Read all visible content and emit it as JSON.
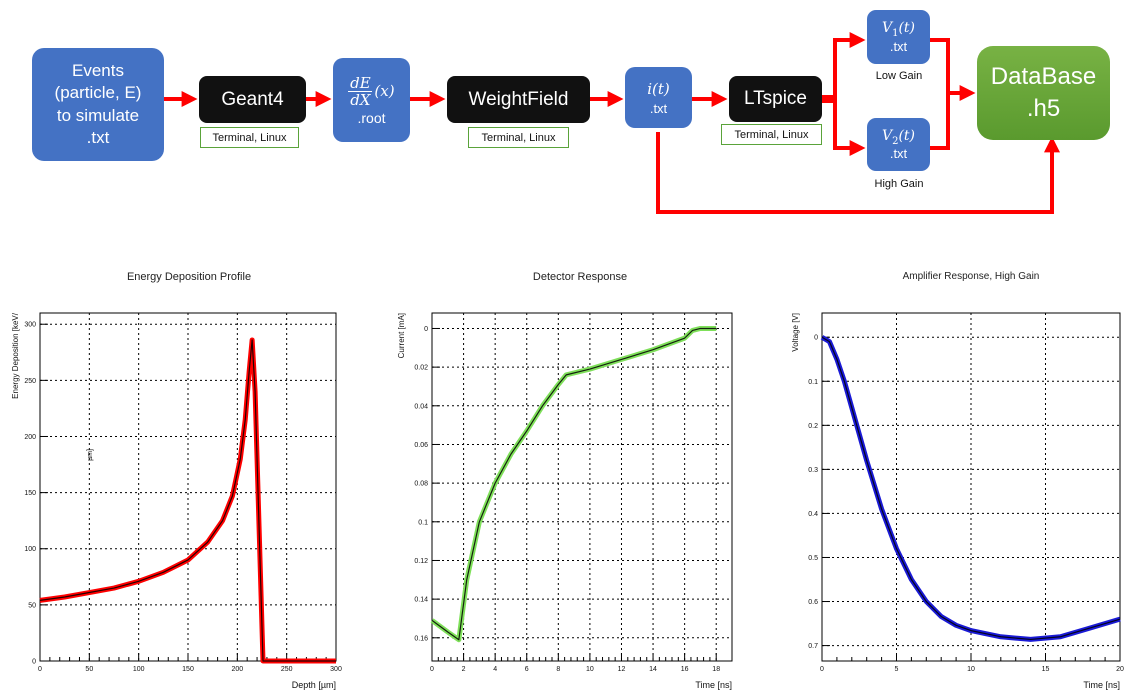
{
  "diagram": {
    "events": [
      "Events",
      "(particle, E)",
      "to simulate",
      ".txt"
    ],
    "geant4": "Geant4",
    "geant4_note": "Terminal, Linux",
    "dedx_num": "dE",
    "dedx_den": "dX",
    "dedx_arg": "(x)",
    "dedx_ext": ".root",
    "weightfield": "WeightField",
    "weightfield_note": "Terminal, Linux",
    "it_math": "i(t)",
    "it_ext": ".txt",
    "ltspice": "LTspice",
    "ltspice_note": "Terminal, Linux",
    "v1_math": "V",
    "v1_sub": "1",
    "v1_arg": "(t)",
    "v1_ext": ".txt",
    "low_gain": "Low Gain",
    "v2_math": "V",
    "v2_sub": "2",
    "v2_arg": "(t)",
    "v2_ext": ".txt",
    "high_gain": "High Gain",
    "database": [
      "DataBase",
      ".h5"
    ],
    "colors": {
      "box_blue": "#4472c4",
      "arrow_red": "#ff0000",
      "db_green": "#6aa839"
    }
  },
  "chart_data": [
    {
      "type": "line",
      "title": "Energy Deposition Profile",
      "xlabel": "Depth [µm]",
      "ylabel": "Energy Deposition [keV/",
      "stray_label": "µm]",
      "xlim": [
        0,
        300
      ],
      "ylim": [
        0,
        310
      ],
      "xticks": [
        0,
        50,
        100,
        150,
        200,
        250,
        300
      ],
      "yticks": [
        0,
        50,
        100,
        150,
        200,
        250,
        300
      ],
      "grid": true,
      "series": [
        {
          "color": "#ff0000",
          "x": [
            0,
            25,
            50,
            75,
            100,
            125,
            150,
            170,
            185,
            195,
            203,
            208,
            212,
            215,
            218,
            222,
            226,
            300
          ],
          "y": [
            54,
            57,
            61,
            65,
            71,
            79,
            90,
            106,
            125,
            147,
            180,
            215,
            258,
            286,
            240,
            120,
            0,
            0
          ]
        }
      ]
    },
    {
      "type": "line",
      "title": "Detector Response",
      "xlabel": "Time [ns]",
      "ylabel": "Current [mA]",
      "xlim": [
        0,
        19
      ],
      "ylim": [
        0.172,
        -0.008
      ],
      "xticks": [
        0,
        2,
        4,
        6,
        8,
        10,
        12,
        14,
        16,
        18
      ],
      "yticks": [
        0,
        0.02,
        0.04,
        0.06,
        0.08,
        0.1,
        0.12,
        0.14,
        0.16
      ],
      "ytick_labels": [
        "0",
        "0.02",
        "0.04",
        "0.06",
        "0.08",
        "0.1",
        "0.12",
        "0.14",
        "0.16"
      ],
      "grid": true,
      "series": [
        {
          "color": "#7fe05a",
          "x": [
            0,
            1,
            1.7,
            2.2,
            3,
            4,
            5,
            6,
            7,
            8,
            8.5,
            10,
            12,
            14,
            16,
            16.5,
            17,
            18
          ],
          "y": [
            0.151,
            0.157,
            0.161,
            0.13,
            0.1,
            0.08,
            0.065,
            0.053,
            0.04,
            0.029,
            0.024,
            0.021,
            0.016,
            0.011,
            0.005,
            0.001,
            0,
            0
          ]
        }
      ]
    },
    {
      "type": "line",
      "title": "Amplifier Response, High Gain",
      "xlabel": "Time [ns]",
      "ylabel": "Voltage [V]",
      "xlim": [
        0,
        20
      ],
      "ylim": [
        0.735,
        -0.055
      ],
      "xticks": [
        0,
        5,
        10,
        15,
        20
      ],
      "yticks": [
        0,
        0.1,
        0.2,
        0.3,
        0.4,
        0.5,
        0.6,
        0.7
      ],
      "ytick_labels": [
        "0",
        "0.1",
        "0.2",
        "0.3",
        "0.4",
        "0.5",
        "0.6",
        "0.7"
      ],
      "grid": true,
      "series": [
        {
          "color": "#1a1ad6",
          "x": [
            0,
            0.5,
            1,
            1.5,
            2,
            3,
            4,
            5,
            6,
            7,
            8,
            9,
            10,
            12,
            14,
            16,
            18,
            20
          ],
          "y": [
            0,
            0.01,
            0.05,
            0.1,
            0.16,
            0.28,
            0.39,
            0.48,
            0.55,
            0.6,
            0.634,
            0.654,
            0.666,
            0.68,
            0.686,
            0.68,
            0.66,
            0.64
          ]
        }
      ]
    }
  ]
}
